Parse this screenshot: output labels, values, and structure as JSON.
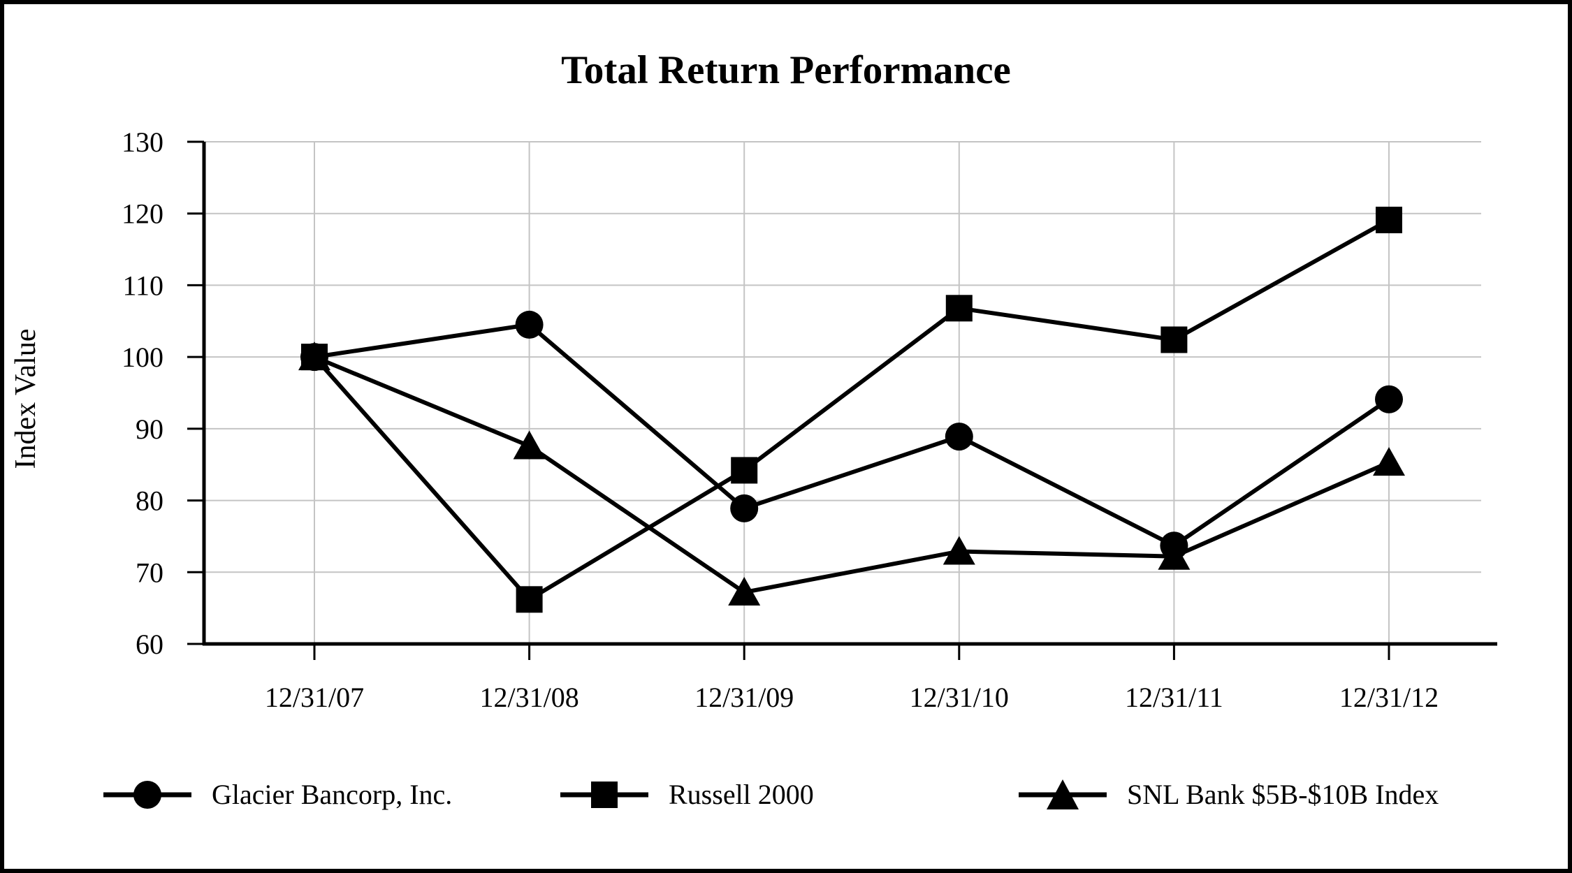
{
  "chart_data": {
    "type": "line",
    "title": "Total Return Performance",
    "xlabel": "",
    "ylabel": "Index Value",
    "x_labels": [
      "12/31/07",
      "12/31/08",
      "12/31/09",
      "12/31/10",
      "12/31/11",
      "12/31/12"
    ],
    "ylim": [
      60,
      130
    ],
    "ytick_step": 10,
    "ytick_labels": [
      "60",
      "70",
      "80",
      "90",
      "100",
      "110",
      "120",
      "130"
    ],
    "grid": true,
    "legend_position": "bottom",
    "series": [
      {
        "name": "Glacier Bancorp, Inc.",
        "marker": "circle",
        "values": [
          100,
          104.5,
          78.9,
          88.9,
          73.7,
          94.1
        ]
      },
      {
        "name": "Russell 2000",
        "marker": "square",
        "values": [
          100,
          66.2,
          84.2,
          106.8,
          102.4,
          119.1
        ]
      },
      {
        "name": "SNL Bank $5B-$10B Index",
        "marker": "triangle",
        "values": [
          100,
          87.6,
          67.2,
          72.9,
          72.2,
          85.3
        ]
      }
    ],
    "colors": {
      "series": "#000000",
      "grid": "#c4c4c4",
      "axis": "#000000",
      "background": "#ffffff",
      "frame_border": "#000000"
    }
  }
}
